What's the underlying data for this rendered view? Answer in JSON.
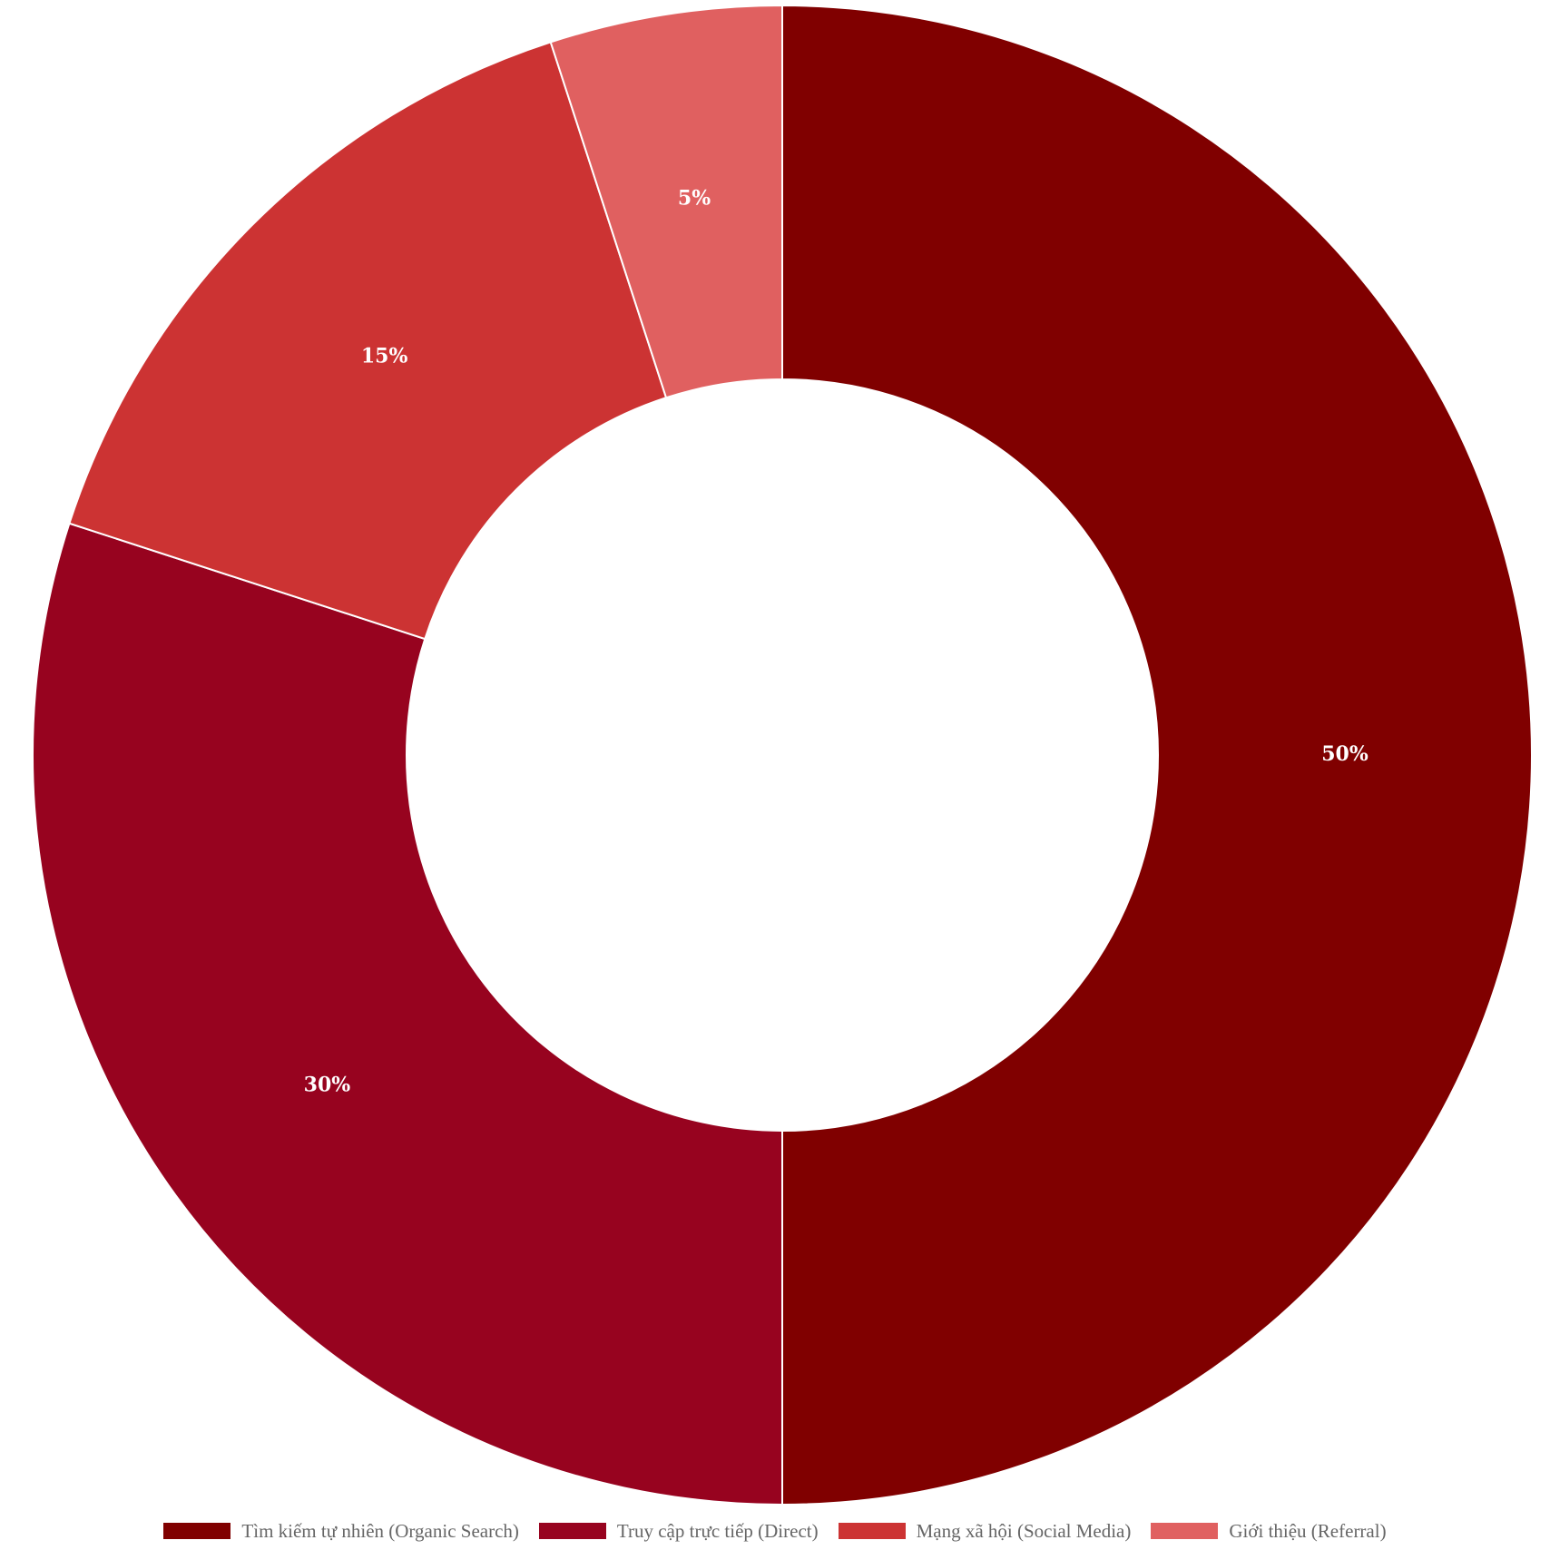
{
  "chart_data": {
    "type": "pie",
    "donut": true,
    "categories": [
      "Tìm kiếm tự nhiên (Organic Search)",
      "Truy cập trực tiếp (Direct)",
      "Mạng xã hội (Social Media)",
      "Giới thiệu (Referral)"
    ],
    "values": [
      50,
      30,
      15,
      5
    ],
    "data_labels": [
      "50%",
      "30%",
      "15%",
      "5%"
    ],
    "colors": [
      "#800000",
      "#97031f",
      "#cc3333",
      "#e06060"
    ],
    "legend_position": "bottom",
    "title": ""
  }
}
